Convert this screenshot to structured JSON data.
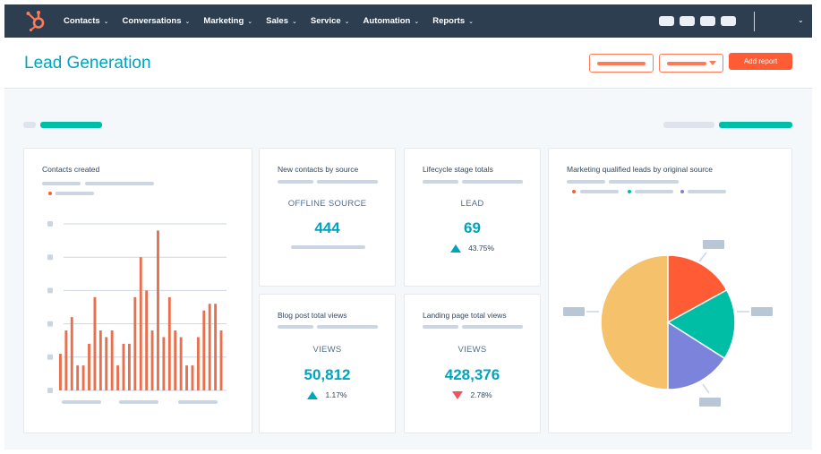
{
  "nav": {
    "items": [
      {
        "label": "Contacts"
      },
      {
        "label": "Conversations"
      },
      {
        "label": "Marketing"
      },
      {
        "label": "Sales"
      },
      {
        "label": "Service"
      },
      {
        "label": "Automation"
      },
      {
        "label": "Reports"
      }
    ]
  },
  "header": {
    "title": "Lead Generation",
    "add_report_label": "Add report"
  },
  "colors": {
    "accent_teal": "#00a4bd",
    "brand_orange": "#ff7a59",
    "nav_bg": "#2d3e50",
    "bar_orange": "#e8704e",
    "pie_yellow": "#f5c26b",
    "pie_orange": "#ff5c35",
    "pie_teal": "#00bda5",
    "pie_purple": "#7c83db"
  },
  "cards": {
    "contacts_created": {
      "title": "Contacts created"
    },
    "new_contacts": {
      "title": "New contacts by source",
      "label": "OFFLINE SOURCE",
      "value": "444"
    },
    "lifecycle": {
      "title": "Lifecycle stage totals",
      "label": "LEAD",
      "value": "69",
      "change": "43.75%",
      "direction": "up"
    },
    "blog_views": {
      "title": "Blog post total views",
      "label": "VIEWS",
      "value": "50,812",
      "change": "1.17%",
      "direction": "up"
    },
    "landing_views": {
      "title": "Landing page total views",
      "label": "VIEWS",
      "value": "428,376",
      "change": "2.78%",
      "direction": "down"
    },
    "mql": {
      "title": "Marketing qualified leads by original source"
    }
  },
  "chart_data": [
    {
      "type": "bar",
      "title": "Contacts created",
      "values": [
        2.2,
        3.6,
        4.4,
        1.5,
        1.5,
        2.8,
        5.6,
        3.6,
        3.2,
        3.6,
        1.5,
        2.8,
        2.8,
        5.6,
        8.0,
        6.0,
        3.6,
        9.6,
        3.2,
        5.6,
        3.6,
        3.2,
        1.5,
        1.5,
        3.2,
        4.8,
        5.2,
        5.2,
        3.6
      ],
      "ylim": [
        0,
        10
      ],
      "grid": true
    },
    {
      "type": "pie",
      "title": "Marketing qualified leads by original source",
      "values": [
        50,
        17,
        17,
        16
      ],
      "colors": [
        "#f5c26b",
        "#ff5c35",
        "#00bda5",
        "#7c83db"
      ]
    }
  ]
}
